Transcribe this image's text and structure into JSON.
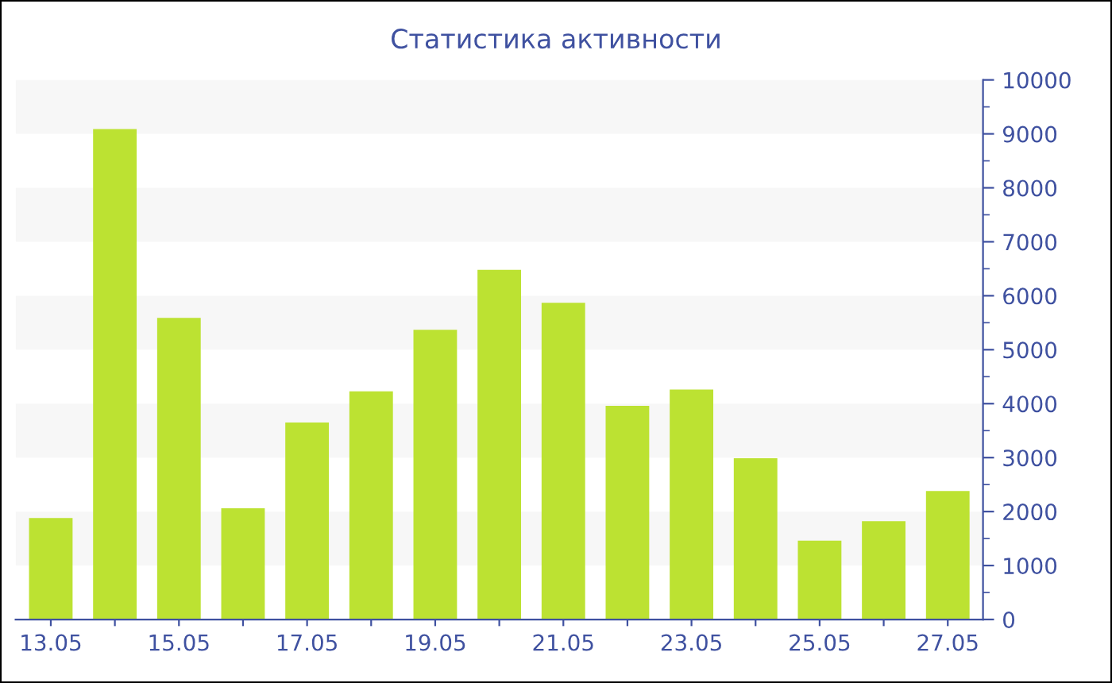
{
  "chart_data": {
    "type": "bar",
    "title": "Статистика активности",
    "categories": [
      "13.05",
      null,
      "15.05",
      null,
      "17.05",
      null,
      "19.05",
      null,
      "21.05",
      null,
      "23.05",
      null,
      "25.05",
      null,
      "27.05"
    ],
    "values": [
      1880,
      9090,
      5590,
      2060,
      3650,
      4230,
      5370,
      6480,
      5870,
      3960,
      4260,
      2990,
      1460,
      1820,
      2380
    ],
    "color": "#bce232",
    "ylim": [
      0,
      10000
    ],
    "yticks": [
      0,
      1000,
      2000,
      3000,
      4000,
      5000,
      6000,
      7000,
      8000,
      9000,
      10000
    ],
    "grid": false,
    "legend": false,
    "bands": [
      {
        "axis": "y",
        "from": 1000,
        "to": 2000,
        "color": "#f7f7f7"
      },
      {
        "axis": "y",
        "from": 3000,
        "to": 4000,
        "color": "#f7f7f7"
      },
      {
        "axis": "y",
        "from": 5000,
        "to": 6000,
        "color": "#f7f7f7"
      },
      {
        "axis": "y",
        "from": 7000,
        "to": 8000,
        "color": "#f7f7f7"
      },
      {
        "axis": "y",
        "from": 9000,
        "to": 10000,
        "color": "#f7f7f7"
      }
    ]
  }
}
